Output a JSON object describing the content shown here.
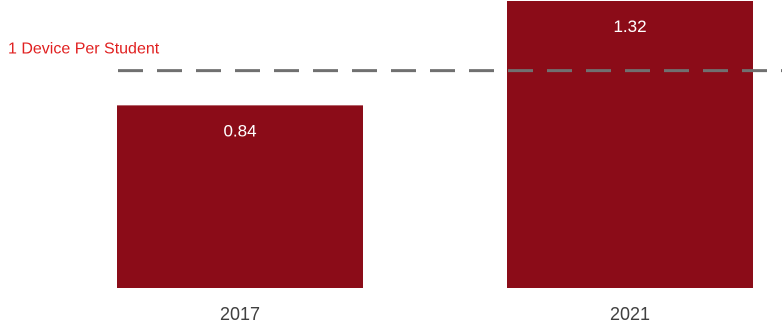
{
  "chart_data": {
    "type": "bar",
    "categories": [
      "2017",
      "2021"
    ],
    "values": [
      0.84,
      1.32
    ],
    "data_labels": [
      "0.84",
      "1.32"
    ],
    "title": "",
    "xlabel": "",
    "ylabel": "",
    "ylim": [
      0,
      1.32
    ],
    "grid": false,
    "reference_line": {
      "value": 1,
      "label": "1 Device Per Student",
      "style": "dashed"
    },
    "colors": {
      "bar": "#8b0c18",
      "bar_label": "#ffffff",
      "tick_label": "#404040",
      "reference_line": "#707070",
      "reference_label": "#e02020"
    }
  }
}
